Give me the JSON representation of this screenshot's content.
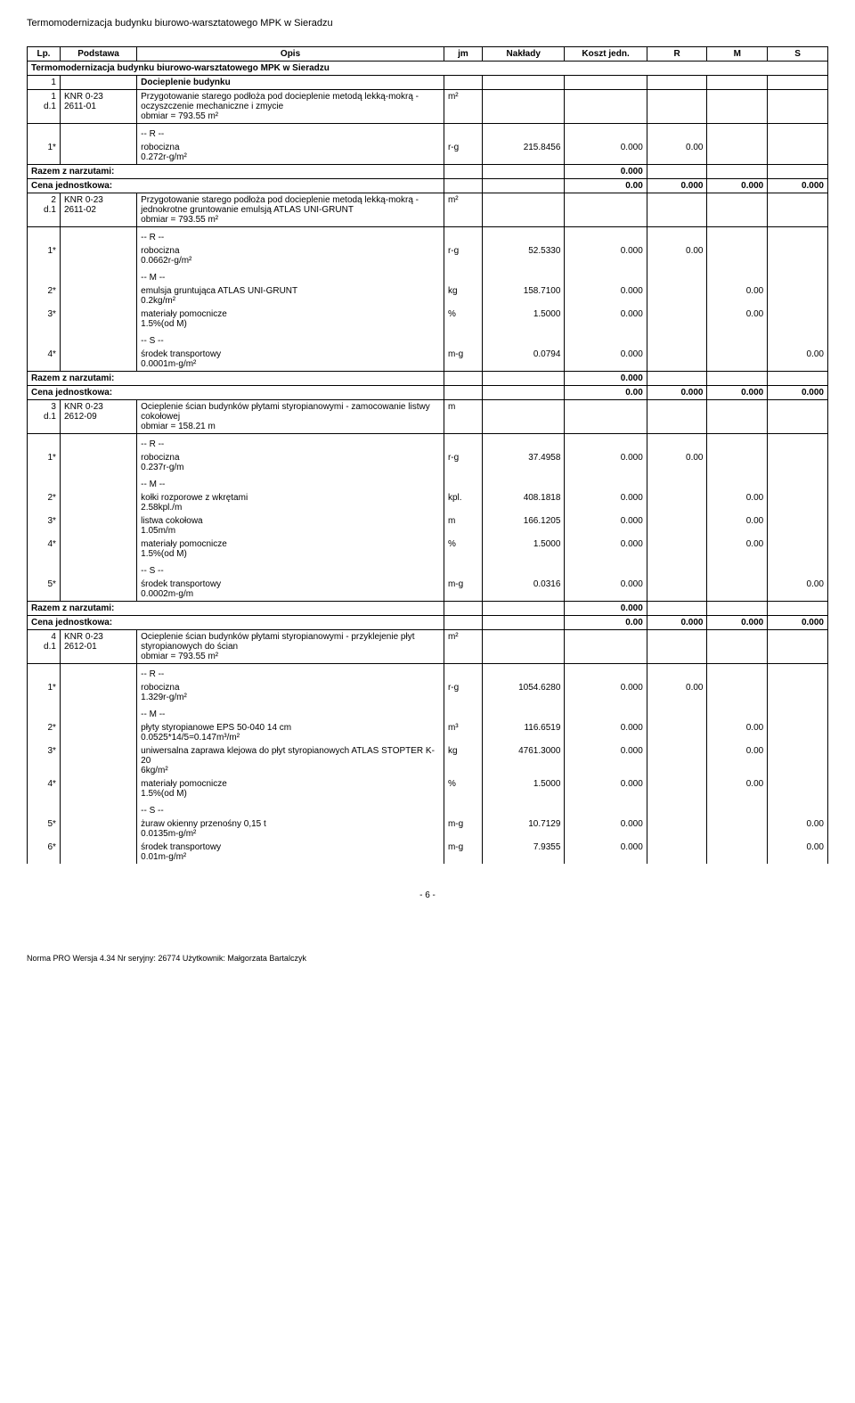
{
  "doc_title": "Termomodernizacja budynku biurowo-warsztatowego MPK w Sieradzu",
  "header": {
    "lp": "Lp.",
    "podstawa": "Podstawa",
    "opis": "Opis",
    "jm": "jm",
    "naklady": "Nakłady",
    "koszt": "Koszt jedn.",
    "r": "R",
    "m": "M",
    "s": "S"
  },
  "project_row": "Termomodernizacja budynku biurowo-warsztatowego MPK w Sieradzu",
  "section1": {
    "lp": "1",
    "title": "Docieplenie budynku"
  },
  "labels": {
    "r_marker": "-- R --",
    "m_marker": "-- M --",
    "s_marker": "-- S --",
    "razem": "Razem z narzutami:",
    "cena": "Cena jednostkowa:"
  },
  "items": [
    {
      "lp": "1",
      "sub": "d.1",
      "kod": "KNR 0-23",
      "kod2": "2611-01",
      "opis": "Przygotowanie starego podłoża pod docieplenie metodą lekką-mokrą - oczyszczenie mechaniczne i zmycie",
      "obmiar": "obmiar  = 793.55 m²",
      "jm": "m²",
      "r": [
        {
          "num": "1*",
          "desc": "robocizna",
          "rate": "0.272r-g/m²",
          "jm": "r-g",
          "nak": "215.8456",
          "koszt": "0.000",
          "r": "0.00"
        }
      ],
      "razem": "0.000",
      "cena": "0.00",
      "cena_r": "0.000",
      "cena_m": "0.000",
      "cena_s": "0.000"
    },
    {
      "lp": "2",
      "sub": "d.1",
      "kod": "KNR 0-23",
      "kod2": "2611-02",
      "opis": "Przygotowanie starego podłoża pod docieplenie metodą lekką-mokrą - jednokrotne gruntowanie emulsją ATLAS UNI-GRUNT",
      "obmiar": "obmiar  = 793.55 m²",
      "jm": "m²",
      "r": [
        {
          "num": "1*",
          "desc": "robocizna",
          "rate": "0.0662r-g/m²",
          "jm": "r-g",
          "nak": "52.5330",
          "koszt": "0.000",
          "r": "0.00"
        }
      ],
      "m": [
        {
          "num": "2*",
          "desc": "emulsja gruntująca ATLAS UNI-GRUNT",
          "rate": "0.2kg/m²",
          "jm": "kg",
          "nak": "158.7100",
          "koszt": "0.000",
          "m": "0.00"
        },
        {
          "num": "3*",
          "desc": "materiały pomocnicze",
          "rate": "1.5%(od M)",
          "jm": "%",
          "nak": "1.5000",
          "koszt": "0.000",
          "m": "0.00"
        }
      ],
      "s": [
        {
          "num": "4*",
          "desc": "środek transportowy",
          "rate": "0.0001m-g/m²",
          "jm": "m-g",
          "nak": "0.0794",
          "koszt": "0.000",
          "s": "0.00"
        }
      ],
      "razem": "0.000",
      "cena": "0.00",
      "cena_r": "0.000",
      "cena_m": "0.000",
      "cena_s": "0.000"
    },
    {
      "lp": "3",
      "sub": "d.1",
      "kod": "KNR 0-23",
      "kod2": "2612-09",
      "opis": "Ocieplenie ścian budynków płytami styropianowymi - zamocowanie listwy cokołowej",
      "obmiar": "obmiar  = 158.21 m",
      "jm": "m",
      "r": [
        {
          "num": "1*",
          "desc": "robocizna",
          "rate": "0.237r-g/m",
          "jm": "r-g",
          "nak": "37.4958",
          "koszt": "0.000",
          "r": "0.00"
        }
      ],
      "m": [
        {
          "num": "2*",
          "desc": "kołki rozporowe z wkrętami",
          "rate": "2.58kpl./m",
          "jm": "kpl.",
          "nak": "408.1818",
          "koszt": "0.000",
          "m": "0.00"
        },
        {
          "num": "3*",
          "desc": "listwa cokołowa",
          "rate": "1.05m/m",
          "jm": "m",
          "nak": "166.1205",
          "koszt": "0.000",
          "m": "0.00"
        },
        {
          "num": "4*",
          "desc": "materiały pomocnicze",
          "rate": "1.5%(od M)",
          "jm": "%",
          "nak": "1.5000",
          "koszt": "0.000",
          "m": "0.00"
        }
      ],
      "s": [
        {
          "num": "5*",
          "desc": "środek transportowy",
          "rate": "0.0002m-g/m",
          "jm": "m-g",
          "nak": "0.0316",
          "koszt": "0.000",
          "s": "0.00"
        }
      ],
      "razem": "0.000",
      "cena": "0.00",
      "cena_r": "0.000",
      "cena_m": "0.000",
      "cena_s": "0.000"
    },
    {
      "lp": "4",
      "sub": "d.1",
      "kod": "KNR 0-23",
      "kod2": "2612-01",
      "opis": "Ocieplenie ścian budynków płytami styropianowymi -  przyklejenie płyt styropianowych do ścian",
      "obmiar": "obmiar  = 793.55 m²",
      "jm": "m²",
      "r": [
        {
          "num": "1*",
          "desc": "robocizna",
          "rate": "1.329r-g/m²",
          "jm": "r-g",
          "nak": "1054.6280",
          "koszt": "0.000",
          "r": "0.00"
        }
      ],
      "m": [
        {
          "num": "2*",
          "desc": "płyty styropianowe EPS 50-040 14 cm",
          "rate": "0.0525*14/5=0.147m³/m²",
          "jm": "m³",
          "nak": "116.6519",
          "koszt": "0.000",
          "m": "0.00"
        },
        {
          "num": "3*",
          "desc": "uniwersalna zaprawa klejowa do płyt styropianowych ATLAS STOPTER K-20",
          "rate": "6kg/m²",
          "jm": "kg",
          "nak": "4761.3000",
          "koszt": "0.000",
          "m": "0.00"
        },
        {
          "num": "4*",
          "desc": "materiały pomocnicze",
          "rate": "1.5%(od M)",
          "jm": "%",
          "nak": "1.5000",
          "koszt": "0.000",
          "m": "0.00"
        }
      ],
      "s": [
        {
          "num": "5*",
          "desc": "żuraw okienny przenośny 0,15 t",
          "rate": "0.0135m-g/m²",
          "jm": "m-g",
          "nak": "10.7129",
          "koszt": "0.000",
          "s": "0.00"
        },
        {
          "num": "6*",
          "desc": "środek transportowy",
          "rate": "0.01m-g/m²",
          "jm": "m-g",
          "nak": "7.9355",
          "koszt": "0.000",
          "s": "0.00"
        }
      ]
    }
  ],
  "page_num": "- 6 -",
  "footer": "Norma PRO Wersja 4.34 Nr seryjny: 26774 Użytkownik: Małgorzata Bartalczyk"
}
